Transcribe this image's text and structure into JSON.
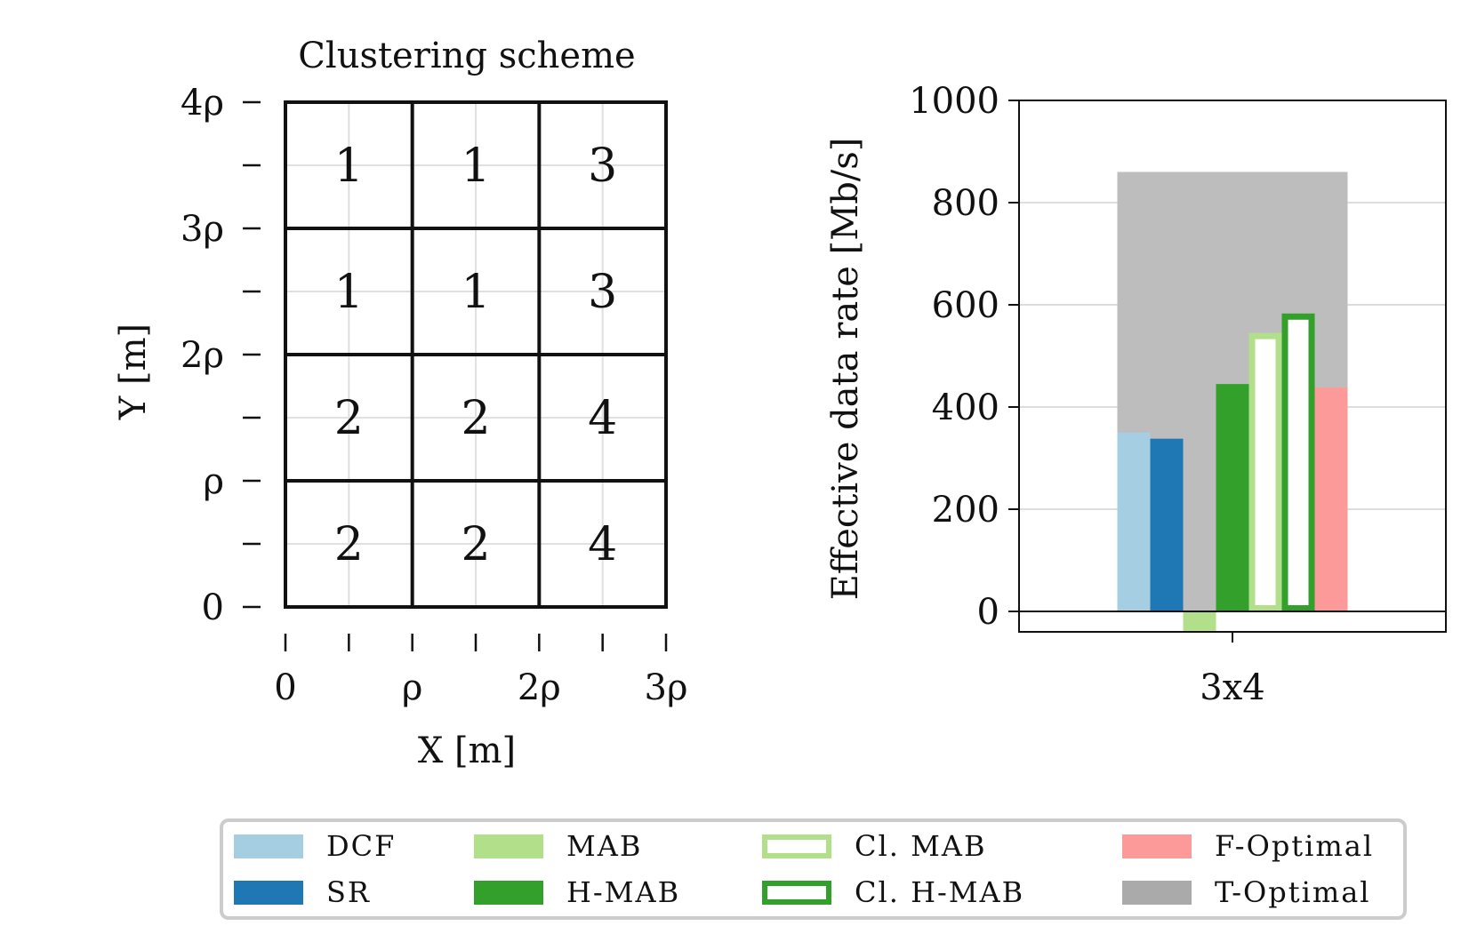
{
  "grid_panel": {
    "title": "Clustering scheme",
    "xlabel": "X [m]",
    "ylabel": "Y [m]",
    "x_tick_labels": [
      "0",
      "ρ",
      "2ρ",
      "3ρ"
    ],
    "y_tick_labels": [
      "0",
      "ρ",
      "2ρ",
      "3ρ",
      "4ρ"
    ],
    "cells": [
      [
        "1",
        "1",
        "3"
      ],
      [
        "1",
        "1",
        "3"
      ],
      [
        "2",
        "2",
        "4"
      ],
      [
        "2",
        "2",
        "4"
      ]
    ]
  },
  "chart_data": {
    "type": "bar",
    "title": "",
    "xlabel": "",
    "ylabel": "Effective data rate [Mb/s]",
    "categories": [
      "3x4"
    ],
    "ylim": [
      -40,
      1000
    ],
    "yticks": [
      0,
      200,
      400,
      600,
      800,
      1000
    ],
    "grid": true,
    "legend_position": "bottom",
    "background_series": {
      "name": "T-Optimal",
      "values": [
        860
      ],
      "color": "#bdbdbd",
      "legend_color": "#aaaaaa"
    },
    "series": [
      {
        "name": "DCF",
        "values": [
          350
        ],
        "color": "#a6cee3",
        "style": "filled"
      },
      {
        "name": "SR",
        "values": [
          338
        ],
        "color": "#1f78b4",
        "style": "filled"
      },
      {
        "name": "MAB",
        "values": [
          -38
        ],
        "color": "#b2df8a",
        "style": "filled"
      },
      {
        "name": "H-MAB",
        "values": [
          445
        ],
        "color": "#33a02c",
        "style": "filled"
      },
      {
        "name": "Cl. MAB",
        "values": [
          545
        ],
        "color": "#b2df8a",
        "style": "outline"
      },
      {
        "name": "Cl. H-MAB",
        "values": [
          583
        ],
        "color": "#33a02c",
        "style": "outline"
      },
      {
        "name": "F-Optimal",
        "values": [
          438
        ],
        "color": "#fb9a99",
        "style": "filled"
      }
    ]
  },
  "legend": {
    "items": [
      {
        "label": "DCF",
        "color": "#a6cee3",
        "style": "filled"
      },
      {
        "label": "SR",
        "color": "#1f78b4",
        "style": "filled"
      },
      {
        "label": "MAB",
        "color": "#b2df8a",
        "style": "filled"
      },
      {
        "label": "H-MAB",
        "color": "#33a02c",
        "style": "filled"
      },
      {
        "label": "Cl.  MAB",
        "color": "#b2df8a",
        "style": "outline"
      },
      {
        "label": "Cl.  H-MAB",
        "color": "#33a02c",
        "style": "outline"
      },
      {
        "label": "F-Optimal",
        "color": "#fb9a99",
        "style": "filled"
      },
      {
        "label": "T-Optimal",
        "color": "#aaaaaa",
        "style": "filled"
      }
    ]
  }
}
